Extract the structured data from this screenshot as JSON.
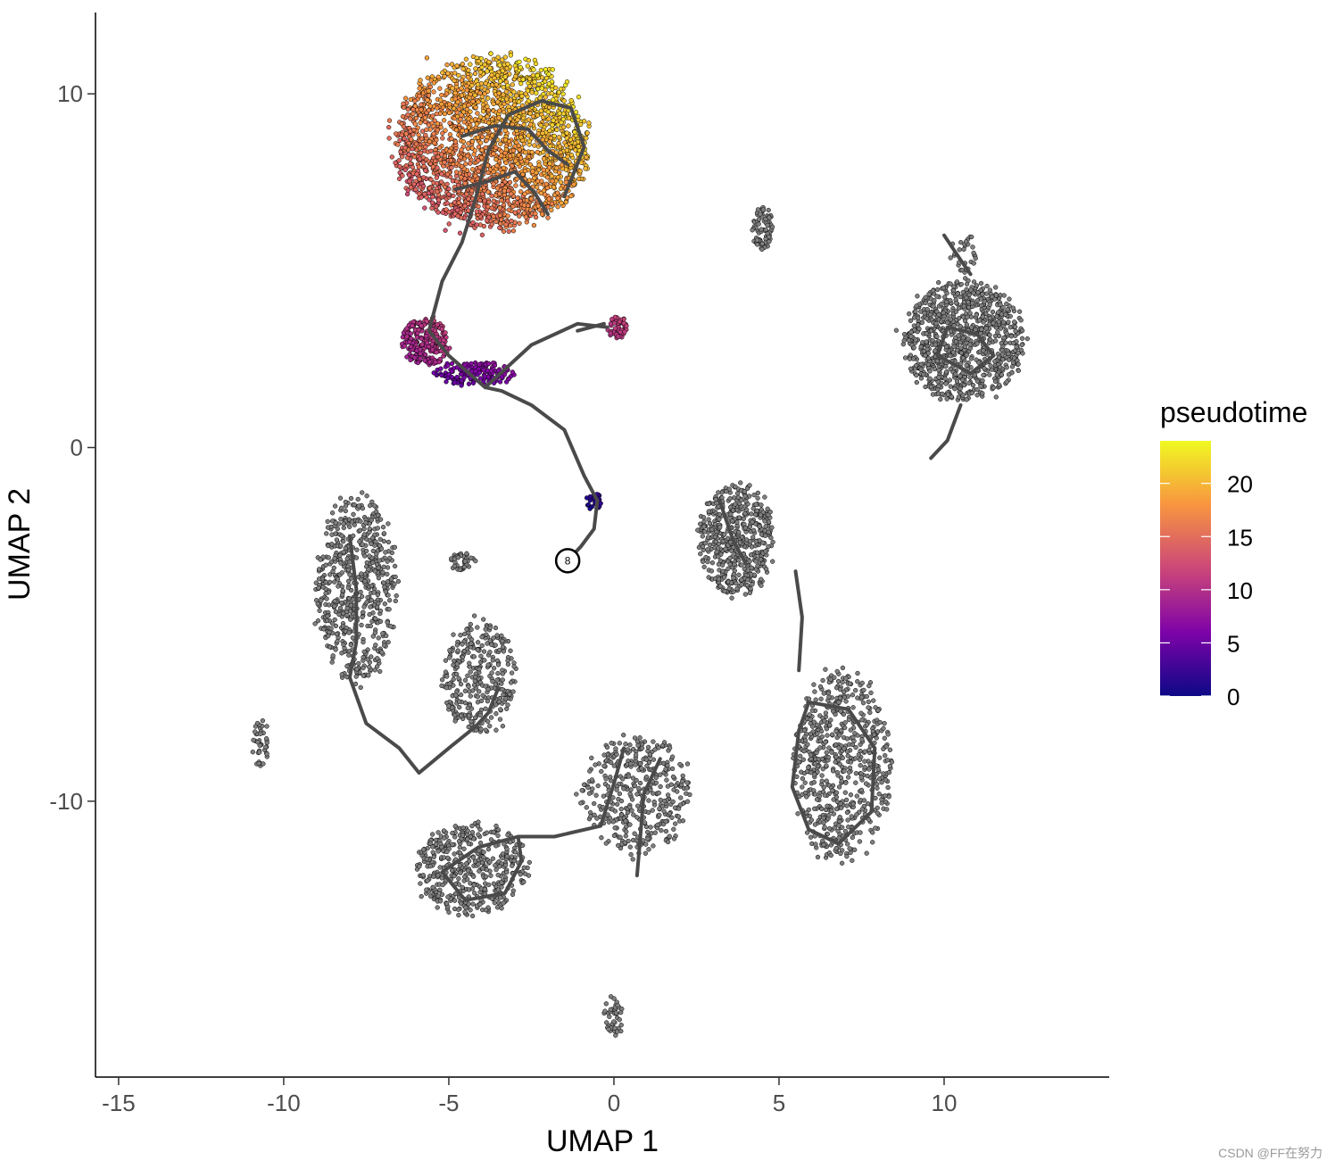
{
  "chart_data": {
    "type": "scatter",
    "title": "",
    "xlabel": "UMAP 1",
    "ylabel": "UMAP 2",
    "xlim": [
      -15.7,
      15.0
    ],
    "ylim": [
      -17.8,
      12.3
    ],
    "x_ticks": [
      -15,
      -10,
      -5,
      0,
      5,
      10
    ],
    "y_ticks": [
      -10,
      0,
      10
    ],
    "x_tick_labels": [
      "-15",
      "-10",
      "-5",
      "0",
      "5",
      "10"
    ],
    "y_tick_labels": [
      "-10",
      "0",
      "10"
    ],
    "grid": false,
    "legend": {
      "title": "pseudotime",
      "placement": "right",
      "type": "colorbar",
      "range": [
        0,
        24
      ],
      "ticks": [
        0,
        5,
        10,
        15,
        20
      ],
      "tick_labels": [
        "0",
        "5",
        "10",
        "15",
        "20"
      ],
      "colors": [
        "#0d0887",
        "#7e03a8",
        "#cc4778",
        "#f89540",
        "#f0f921"
      ]
    },
    "na_color": "#7f7f7f",
    "trajectory_color": "#4a4a4a",
    "clusters": [
      {
        "cx": -3.7,
        "cy": 8.6,
        "rx": 2.9,
        "ry": 2.4,
        "n": 2200,
        "colored": true,
        "pt_min": 12,
        "pt_max": 24
      },
      {
        "cx": -5.7,
        "cy": 3.0,
        "rx": 0.7,
        "ry": 0.7,
        "n": 260,
        "colored": true,
        "pt_min": 8,
        "pt_max": 12
      },
      {
        "cx": -4.2,
        "cy": 2.1,
        "rx": 1.2,
        "ry": 0.35,
        "n": 160,
        "colored": true,
        "pt_min": 4,
        "pt_max": 8
      },
      {
        "cx": 0.1,
        "cy": 3.4,
        "rx": 0.3,
        "ry": 0.3,
        "n": 60,
        "colored": true,
        "pt_min": 10,
        "pt_max": 12
      },
      {
        "cx": -0.6,
        "cy": -1.5,
        "rx": 0.25,
        "ry": 0.25,
        "n": 25,
        "colored": true,
        "pt_min": 0,
        "pt_max": 3
      },
      {
        "cx": 10.6,
        "cy": 3.0,
        "rx": 1.8,
        "ry": 1.7,
        "n": 900,
        "colored": false
      },
      {
        "cx": 4.5,
        "cy": 6.2,
        "rx": 0.3,
        "ry": 0.6,
        "n": 80,
        "colored": false
      },
      {
        "cx": -7.8,
        "cy": -4.0,
        "rx": 1.2,
        "ry": 2.6,
        "n": 600,
        "colored": false
      },
      {
        "cx": 3.7,
        "cy": -2.6,
        "rx": 1.1,
        "ry": 1.6,
        "n": 500,
        "colored": false
      },
      {
        "cx": -4.1,
        "cy": -6.5,
        "rx": 1.1,
        "ry": 1.6,
        "n": 320,
        "colored": false
      },
      {
        "cx": 6.9,
        "cy": -9.0,
        "rx": 1.5,
        "ry": 2.7,
        "n": 650,
        "colored": false
      },
      {
        "cx": 0.7,
        "cy": -9.8,
        "rx": 1.6,
        "ry": 1.7,
        "n": 400,
        "colored": false
      },
      {
        "cx": -4.3,
        "cy": -11.9,
        "rx": 1.7,
        "ry": 1.3,
        "n": 450,
        "colored": false
      },
      {
        "cx": -4.6,
        "cy": -3.2,
        "rx": 0.4,
        "ry": 0.3,
        "n": 40,
        "colored": false
      },
      {
        "cx": 0.0,
        "cy": -16.1,
        "rx": 0.3,
        "ry": 0.6,
        "n": 40,
        "colored": false
      },
      {
        "cx": -10.7,
        "cy": -8.3,
        "rx": 0.25,
        "ry": 0.8,
        "n": 40,
        "colored": false
      },
      {
        "cx": 10.6,
        "cy": 5.5,
        "rx": 0.4,
        "ry": 0.6,
        "n": 30,
        "colored": false
      }
    ],
    "trajectory": [
      [
        [
          -1.4,
          -3.2
        ],
        [
          -1.0,
          -2.8
        ],
        [
          -0.6,
          -2.3
        ],
        [
          -0.5,
          -1.5
        ],
        [
          -0.9,
          -0.8
        ],
        [
          -1.5,
          0.5
        ],
        [
          -2.5,
          1.2
        ],
        [
          -3.4,
          1.6
        ],
        [
          -3.9,
          1.7
        ],
        [
          -5.0,
          2.6
        ],
        [
          -5.6,
          3.3
        ],
        [
          -5.2,
          4.7
        ],
        [
          -4.6,
          5.8
        ],
        [
          -4.2,
          7.0
        ],
        [
          -3.8,
          8.4
        ],
        [
          -3.2,
          9.4
        ],
        [
          -2.2,
          9.8
        ],
        [
          -1.3,
          9.6
        ],
        [
          -0.9,
          8.5
        ],
        [
          -1.5,
          7.1
        ]
      ],
      [
        [
          -4.6,
          8.8
        ],
        [
          -3.6,
          9.1
        ],
        [
          -2.6,
          9.0
        ],
        [
          -2.0,
          8.4
        ],
        [
          -1.4,
          8.0
        ]
      ],
      [
        [
          -4.8,
          7.3
        ],
        [
          -3.9,
          7.5
        ],
        [
          -3.0,
          7.8
        ],
        [
          -2.4,
          7.2
        ],
        [
          -2.0,
          6.6
        ]
      ],
      [
        [
          -3.9,
          1.7
        ],
        [
          -2.5,
          2.9
        ],
        [
          -1.1,
          3.5
        ],
        [
          -0.2,
          3.4
        ]
      ],
      [
        [
          -1.1,
          3.3
        ],
        [
          -0.3,
          3.5
        ]
      ],
      [
        [
          -8.0,
          -2.5
        ],
        [
          -7.8,
          -4.0
        ],
        [
          -7.8,
          -5.5
        ],
        [
          -8.0,
          -6.5
        ]
      ],
      [
        [
          -8.0,
          -6.5
        ],
        [
          -7.5,
          -7.8
        ],
        [
          -6.5,
          -8.5
        ],
        [
          -5.9,
          -9.2
        ],
        [
          -5.0,
          -8.5
        ],
        [
          -4.2,
          -7.9
        ],
        [
          -3.8,
          -7.5
        ],
        [
          -3.5,
          -6.8
        ]
      ],
      [
        [
          11.0,
          3.2
        ],
        [
          10.1,
          3.4
        ],
        [
          9.8,
          2.6
        ],
        [
          10.8,
          2.1
        ],
        [
          11.5,
          2.6
        ],
        [
          11.0,
          3.2
        ]
      ],
      [
        [
          10.5,
          1.2
        ],
        [
          10.1,
          0.2
        ],
        [
          9.6,
          -0.3
        ]
      ],
      [
        [
          10.0,
          6.0
        ],
        [
          10.5,
          5.3
        ],
        [
          10.8,
          4.9
        ]
      ],
      [
        [
          3.2,
          -1.5
        ],
        [
          3.6,
          -2.6
        ],
        [
          4.0,
          -3.3
        ]
      ],
      [
        [
          5.5,
          -3.5
        ],
        [
          5.7,
          -4.8
        ],
        [
          5.6,
          -6.3
        ]
      ],
      [
        [
          5.9,
          -7.2
        ],
        [
          7.1,
          -7.4
        ],
        [
          7.9,
          -8.5
        ],
        [
          7.8,
          -10.3
        ],
        [
          6.8,
          -11.2
        ],
        [
          5.9,
          -10.8
        ],
        [
          5.4,
          -9.6
        ],
        [
          5.6,
          -8.0
        ],
        [
          5.9,
          -7.2
        ]
      ],
      [
        [
          0.3,
          -8.5
        ],
        [
          0.0,
          -9.5
        ],
        [
          -0.4,
          -10.7
        ],
        [
          -1.8,
          -11.0
        ],
        [
          -2.9,
          -11.0
        ]
      ],
      [
        [
          -2.9,
          -11.0
        ],
        [
          -4.1,
          -11.3
        ],
        [
          -5.2,
          -12.0
        ],
        [
          -4.5,
          -12.8
        ],
        [
          -3.3,
          -12.6
        ],
        [
          -2.8,
          -11.7
        ],
        [
          -2.9,
          -11.0
        ]
      ],
      [
        [
          1.4,
          -8.8
        ],
        [
          0.9,
          -9.8
        ],
        [
          0.8,
          -11.0
        ],
        [
          0.7,
          -12.1
        ]
      ]
    ],
    "root_node": {
      "x": -1.4,
      "y": -3.2,
      "label": "8"
    }
  }
}
